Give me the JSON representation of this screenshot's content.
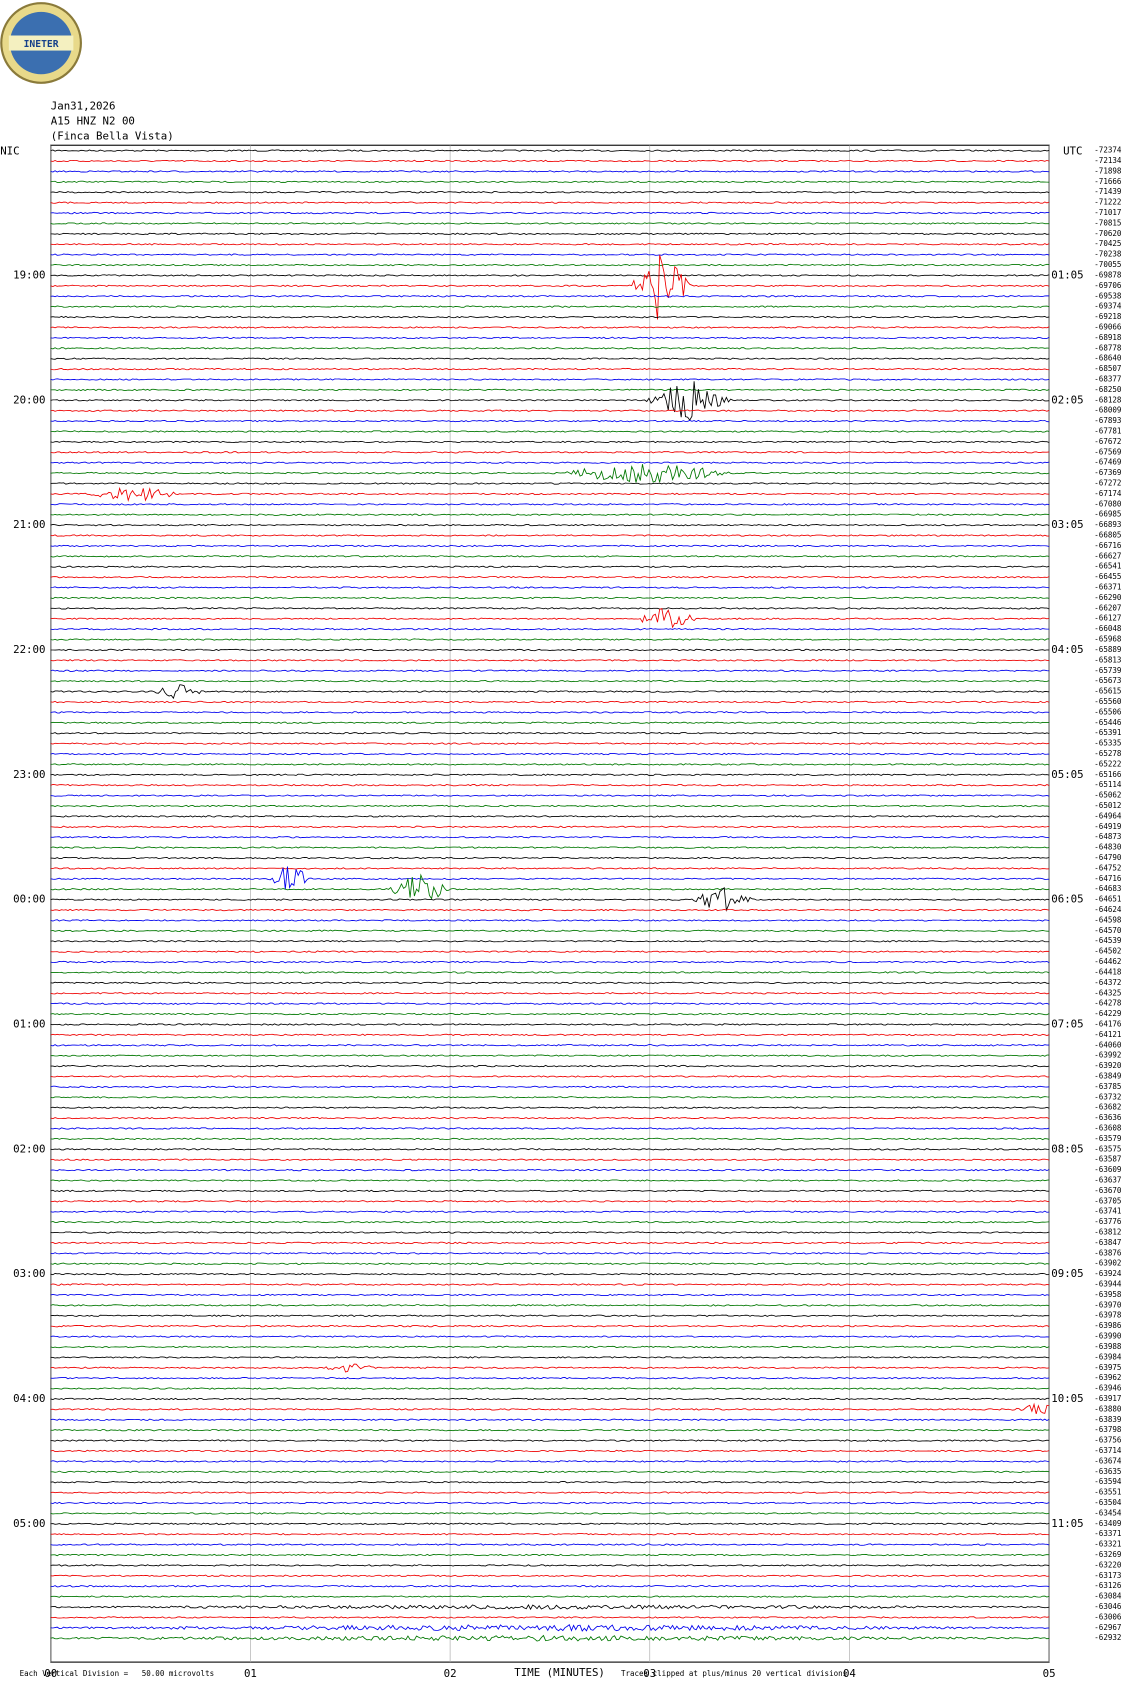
{
  "header": {
    "logo": "INETER",
    "date": "Jan31,2026",
    "station": "A15 HNZ N2 00",
    "location": "(Finca Bella Vista)"
  },
  "left_axis": {
    "title": "NIC",
    "labels": [
      "19:00",
      "20:00",
      "21:00",
      "22:00",
      "23:00",
      "00:00",
      "01:00",
      "02:00",
      "03:00",
      "04:00",
      "05:00"
    ]
  },
  "right_axis": {
    "title": "UTC",
    "labels": [
      "01:05",
      "02:05",
      "03:05",
      "04:05",
      "05:05",
      "06:05",
      "07:05",
      "08:05",
      "09:05",
      "10:05",
      "11:05"
    ]
  },
  "trace_offsets": [
    -72374,
    -72134,
    -71898,
    -71666,
    -71439,
    -71222,
    -71017,
    -70815,
    -70620,
    -70425,
    -70238,
    -70055,
    -69878,
    -69706,
    -69538,
    -69374,
    -69218,
    -69066,
    -68918,
    -68778,
    -68640,
    -68507,
    -68377,
    -68250,
    -68128,
    -68009,
    -67893,
    -67781,
    -67672,
    -67569,
    -67469,
    -67369,
    -67272,
    -67174,
    -67080,
    -66985,
    -66893,
    -66805,
    -66716,
    -66627,
    -66541,
    -66455,
    -66371,
    -66290,
    -66207,
    -66127,
    -66048,
    -65968,
    -65889,
    -65813,
    -65739,
    -65673,
    -65615,
    -65560,
    -65506,
    -65446,
    -65391,
    -65335,
    -65278,
    -65222,
    -65166,
    -65114,
    -65062,
    -65012,
    -64964,
    -64919,
    -64873,
    -64830,
    -64790,
    -64752,
    -64716,
    -64683,
    -64651,
    -64624,
    -64598,
    -64570,
    -64539,
    -64502,
    -64462,
    -64418,
    -64372,
    -64325,
    -64278,
    -64229,
    -64176,
    -64121,
    -64060,
    -63992,
    -63920,
    -63849,
    -63785,
    -63732,
    -63682,
    -63636,
    -63608,
    -63579,
    -63575,
    -63587,
    -63609,
    -63637,
    -63670,
    -63705,
    -63741,
    -63776,
    -63812,
    -63847,
    -63876,
    -63902,
    -63924,
    -63944,
    -63958,
    -63970,
    -63978,
    -63986,
    -63990,
    -63988,
    -63984,
    -63975,
    -63962,
    -63946,
    -63917,
    -63880,
    -63839,
    -63798,
    -63756,
    -63714,
    -63674,
    -63635,
    -63594,
    -63551,
    -63504,
    -63454,
    -63409,
    -63371,
    -63321,
    -63269,
    -63220,
    -63173,
    -63126,
    -63084,
    -63046,
    -63006,
    -62967,
    -62932
  ],
  "x_axis": {
    "title": "TIME (MINUTES)",
    "ticks": [
      "00",
      "01",
      "02",
      "03",
      "04",
      "05"
    ]
  },
  "footer": {
    "scale": "Each Vertical Division =   50.00 microvolts",
    "clip": "Traces clipped at plus/minus 20 vertical divisions"
  }
}
